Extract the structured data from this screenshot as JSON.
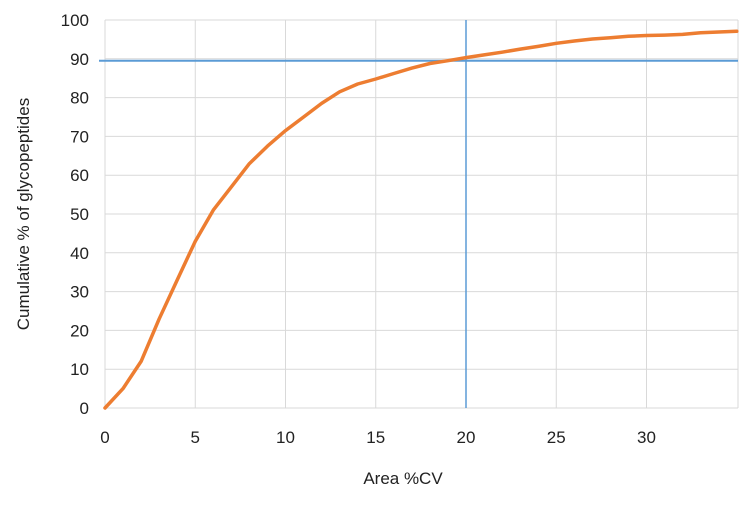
{
  "chart_data": {
    "type": "line",
    "title": "",
    "xlabel": "Area %CV",
    "ylabel": "Cumulative % of glycopeptides",
    "xlim": [
      0,
      35
    ],
    "ylim": [
      0,
      100
    ],
    "x_ticks": [
      0,
      5,
      10,
      15,
      20,
      25,
      30
    ],
    "y_ticks": [
      0,
      10,
      20,
      30,
      40,
      50,
      60,
      70,
      80,
      90,
      100
    ],
    "grid": true,
    "legend": "none",
    "series": [
      {
        "color": "#ED7D31",
        "x": [
          0,
          1,
          2,
          3,
          4,
          5,
          6,
          7,
          8,
          9,
          10,
          11,
          12,
          13,
          14,
          15,
          16,
          17,
          18,
          19,
          20,
          21,
          22,
          23,
          24,
          25,
          26,
          27,
          28,
          29,
          30,
          31,
          32,
          33,
          34,
          35
        ],
        "y": [
          0,
          5,
          12,
          23,
          33,
          43,
          51,
          57,
          63,
          67.5,
          71.5,
          75,
          78.5,
          81.5,
          83.5,
          84.8,
          86.2,
          87.6,
          88.8,
          89.5,
          90.3,
          91,
          91.7,
          92.5,
          93.2,
          94,
          94.6,
          95.1,
          95.4,
          95.8,
          96,
          96.1,
          96.3,
          96.7,
          96.9,
          97.1
        ]
      }
    ],
    "reference_lines": [
      {
        "orientation": "horizontal",
        "value": 89.5,
        "color": "#5B9BD5"
      },
      {
        "orientation": "vertical",
        "value": 20,
        "color": "#5B9BD5"
      }
    ]
  }
}
